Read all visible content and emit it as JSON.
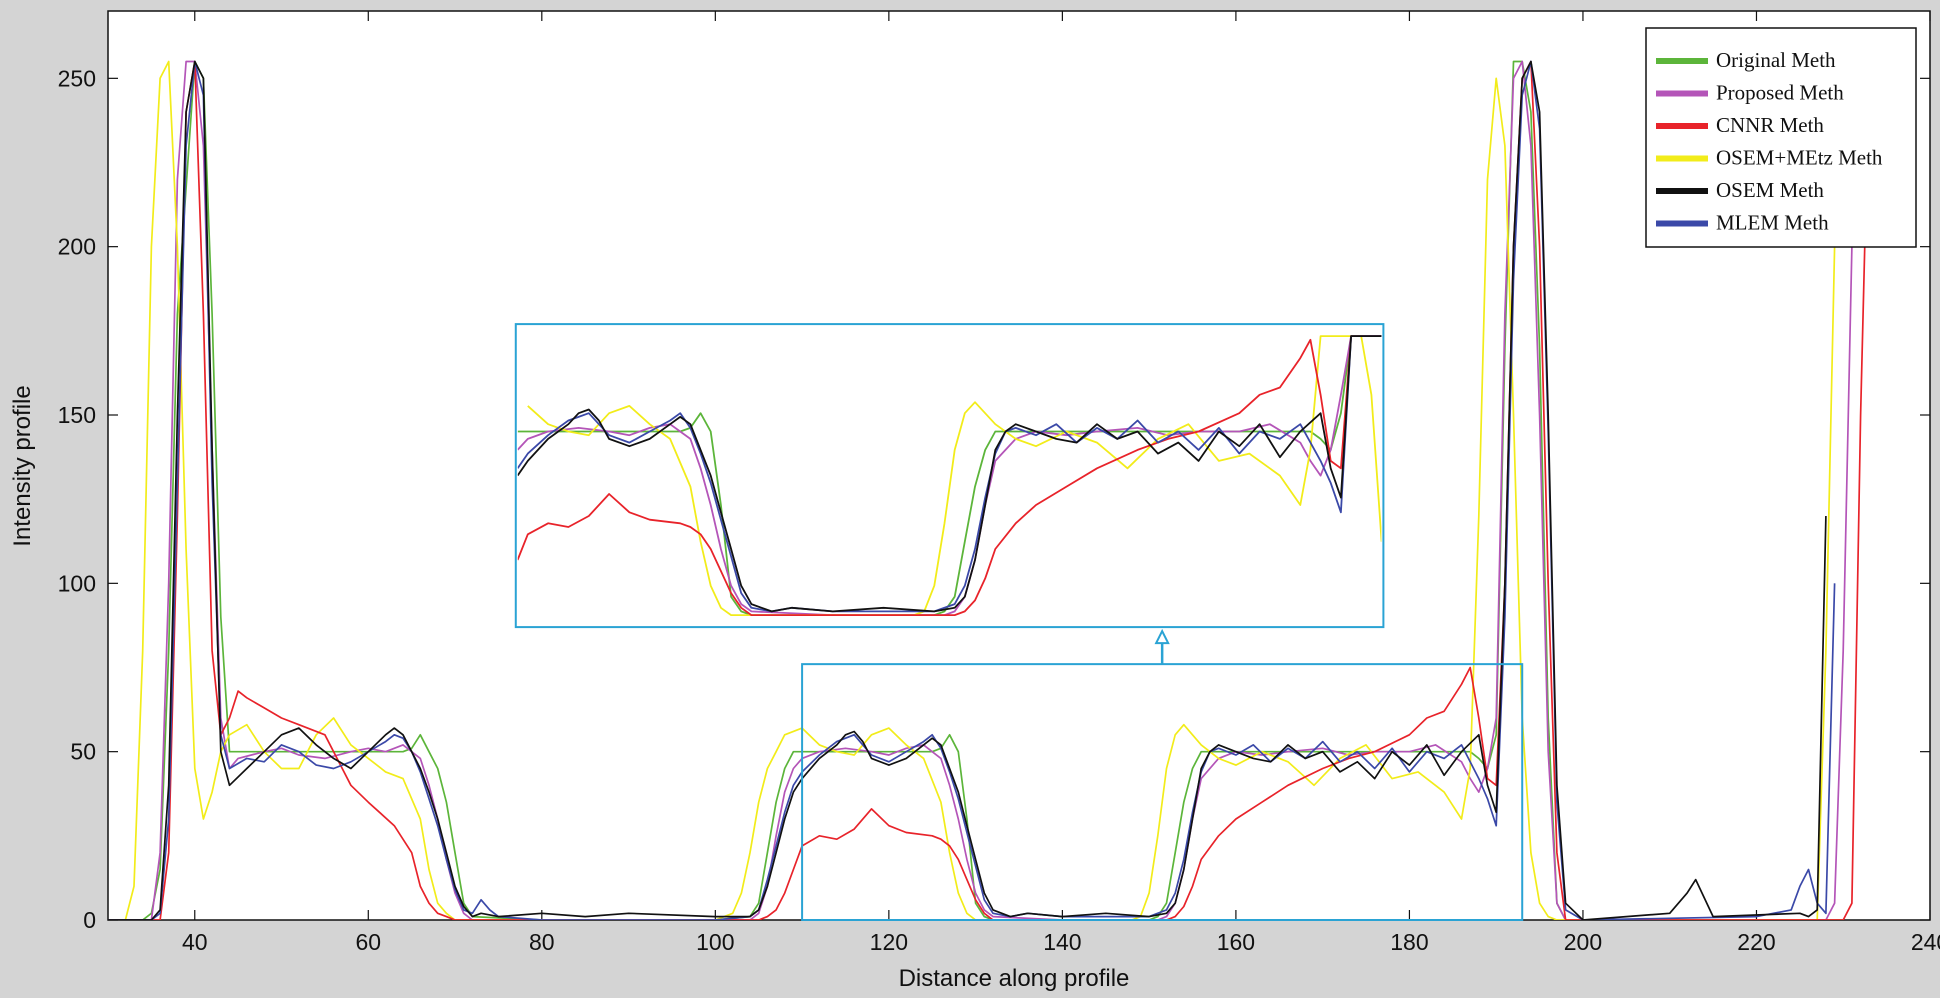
{
  "chart_data": {
    "type": "line",
    "title": "",
    "xlabel": "Distance along profile",
    "ylabel": "Intensity profile",
    "xlim": [
      30,
      240
    ],
    "ylim": [
      0,
      270
    ],
    "xticks": [
      40,
      60,
      80,
      100,
      120,
      140,
      160,
      180,
      200,
      220,
      240
    ],
    "yticks": [
      0,
      50,
      100,
      150,
      200,
      250
    ],
    "legend_position": "top-right",
    "colors": {
      "original": "#5cb53a",
      "proposed": "#b455b8",
      "cnnr": "#e8232a",
      "osem_metz": "#f2ec1a",
      "osem": "#111111",
      "mlem": "#3b49a8",
      "zoom_box": "#2aa3d4",
      "plot_bg": "#ffffff",
      "figure_bg": "#d4d4d4"
    },
    "series": [
      {
        "name": "Original Meth",
        "color": "#5cb53a",
        "x": [
          30,
          34,
          35,
          36,
          37,
          38,
          40,
          41,
          42,
          43,
          44,
          50,
          60,
          64,
          65,
          66,
          67,
          68,
          69,
          70,
          71,
          72,
          80,
          100,
          104,
          105,
          106,
          107,
          108,
          109,
          110,
          111,
          112,
          113,
          125,
          126,
          127,
          128,
          129,
          130,
          131,
          132,
          140,
          148,
          149,
          150,
          151,
          152,
          153,
          154,
          155,
          156,
          170,
          187,
          188,
          189,
          190,
          191,
          192,
          193,
          194,
          195,
          196,
          197,
          198,
          200,
          230
        ],
        "y": [
          0,
          0,
          2,
          15,
          80,
          180,
          255,
          250,
          180,
          90,
          50,
          50,
          50,
          50,
          51,
          55,
          50,
          45,
          35,
          20,
          5,
          1,
          0,
          0,
          1,
          5,
          20,
          35,
          45,
          50,
          50,
          50,
          50,
          50,
          50,
          51,
          55,
          50,
          30,
          5,
          1,
          0,
          0,
          0,
          0,
          0,
          1,
          5,
          20,
          35,
          45,
          50,
          50,
          50,
          48,
          45,
          55,
          170,
          255,
          255,
          240,
          170,
          60,
          5,
          0,
          0,
          0
        ]
      },
      {
        "name": "Proposed Meth",
        "color": "#b455b8",
        "x": [
          30,
          35,
          36,
          37,
          38,
          39,
          40,
          41,
          42,
          43,
          44,
          45,
          48,
          50,
          52,
          55,
          58,
          60,
          62,
          64,
          65,
          66,
          67,
          68,
          69,
          70,
          71,
          72,
          80,
          100,
          104,
          105,
          106,
          107,
          108,
          109,
          110,
          112,
          115,
          118,
          120,
          122,
          124,
          125,
          126,
          127,
          128,
          129,
          130,
          131,
          132,
          140,
          150,
          151,
          152,
          153,
          154,
          155,
          156,
          158,
          160,
          163,
          166,
          170,
          173,
          176,
          180,
          183,
          186,
          187,
          188,
          189,
          190,
          191,
          192,
          193,
          194,
          195,
          196,
          197,
          198,
          200,
          228,
          229,
          230,
          231,
          232,
          234
        ],
        "y": [
          0,
          0,
          20,
          100,
          220,
          255,
          255,
          230,
          140,
          60,
          45,
          48,
          50,
          51,
          49,
          48,
          50,
          51,
          50,
          52,
          50,
          48,
          40,
          30,
          18,
          8,
          2,
          0,
          0,
          0,
          0,
          2,
          10,
          25,
          38,
          45,
          48,
          50,
          51,
          50,
          49,
          51,
          52,
          50,
          48,
          40,
          30,
          18,
          8,
          3,
          1,
          0,
          0,
          0,
          1,
          5,
          15,
          30,
          42,
          48,
          50,
          49,
          50,
          51,
          49,
          50,
          50,
          52,
          47,
          42,
          38,
          45,
          60,
          180,
          250,
          255,
          230,
          150,
          50,
          5,
          0,
          0,
          0,
          5,
          80,
          200,
          255,
          255
        ]
      },
      {
        "name": "CNNR Meth",
        "color": "#e8232a",
        "x": [
          30,
          36,
          37,
          38,
          39,
          40,
          41,
          42,
          43,
          44,
          45,
          46,
          48,
          50,
          52,
          55,
          58,
          60,
          63,
          65,
          66,
          67,
          68,
          69,
          70,
          71,
          72,
          80,
          100,
          105,
          106,
          107,
          108,
          109,
          110,
          112,
          114,
          116,
          118,
          120,
          122,
          125,
          126,
          127,
          128,
          129,
          130,
          131,
          132,
          140,
          152,
          153,
          154,
          155,
          156,
          158,
          160,
          163,
          166,
          170,
          173,
          176,
          180,
          182,
          184,
          186,
          187,
          188,
          189,
          190,
          191,
          192,
          193,
          194,
          195,
          196,
          197,
          198,
          200,
          230,
          231,
          232,
          233,
          235
        ],
        "y": [
          0,
          0,
          20,
          120,
          240,
          255,
          180,
          80,
          55,
          60,
          68,
          66,
          63,
          60,
          58,
          55,
          40,
          35,
          28,
          20,
          10,
          5,
          2,
          1,
          0,
          0,
          0,
          0,
          0,
          0,
          1,
          3,
          8,
          15,
          22,
          25,
          24,
          27,
          33,
          28,
          26,
          25,
          24,
          22,
          18,
          12,
          6,
          2,
          0,
          0,
          0,
          1,
          4,
          10,
          18,
          25,
          30,
          35,
          40,
          45,
          48,
          50,
          55,
          60,
          62,
          70,
          75,
          60,
          42,
          40,
          100,
          200,
          250,
          255,
          200,
          100,
          20,
          0,
          0,
          0,
          5,
          150,
          255,
          255
        ]
      },
      {
        "name": "OSEM+MEtz Meth",
        "color": "#f2ec1a",
        "x": [
          30,
          32,
          33,
          34,
          35,
          36,
          37,
          38,
          39,
          40,
          41,
          42,
          43,
          44,
          46,
          48,
          50,
          52,
          54,
          56,
          58,
          60,
          62,
          64,
          66,
          67,
          68,
          69,
          70,
          80,
          100,
          102,
          103,
          104,
          105,
          106,
          107,
          108,
          110,
          112,
          114,
          116,
          118,
          120,
          122,
          124,
          126,
          127,
          128,
          129,
          130,
          140,
          148,
          149,
          150,
          151,
          152,
          153,
          154,
          156,
          158,
          160,
          163,
          166,
          169,
          172,
          175,
          178,
          181,
          184,
          186,
          187,
          188,
          189,
          190,
          191,
          192,
          193,
          194,
          195,
          196,
          197,
          198,
          227,
          228,
          229
        ],
        "y": [
          0,
          0,
          10,
          80,
          200,
          250,
          255,
          200,
          110,
          45,
          30,
          38,
          50,
          55,
          58,
          50,
          45,
          45,
          55,
          60,
          52,
          48,
          44,
          42,
          30,
          15,
          5,
          2,
          0,
          0,
          0,
          2,
          8,
          20,
          35,
          45,
          50,
          55,
          57,
          52,
          50,
          49,
          55,
          57,
          52,
          48,
          35,
          20,
          8,
          2,
          0,
          0,
          0,
          1,
          8,
          25,
          45,
          55,
          58,
          52,
          48,
          46,
          50,
          47,
          40,
          48,
          52,
          42,
          44,
          38,
          30,
          45,
          120,
          220,
          250,
          230,
          150,
          60,
          20,
          5,
          1,
          0,
          0,
          0,
          80,
          200
        ]
      },
      {
        "name": "OSEM Meth",
        "color": "#111111",
        "x": [
          30,
          35,
          36,
          37,
          38,
          39,
          40,
          41,
          42,
          43,
          44,
          46,
          48,
          50,
          52,
          54,
          56,
          58,
          60,
          62,
          63,
          64,
          65,
          66,
          67,
          68,
          69,
          70,
          71,
          72,
          73,
          75,
          80,
          85,
          90,
          100,
          104,
          105,
          106,
          107,
          108,
          109,
          110,
          112,
          114,
          115,
          116,
          117,
          118,
          120,
          122,
          124,
          125,
          126,
          127,
          128,
          129,
          130,
          131,
          132,
          134,
          136,
          140,
          145,
          150,
          152,
          153,
          154,
          155,
          156,
          157,
          158,
          160,
          162,
          164,
          166,
          168,
          170,
          172,
          174,
          176,
          178,
          180,
          182,
          184,
          186,
          188,
          189,
          190,
          191,
          192,
          193,
          194,
          195,
          196,
          197,
          198,
          200,
          205,
          210,
          212,
          213,
          215,
          225,
          226,
          227,
          228
        ],
        "y": [
          0,
          0,
          3,
          40,
          150,
          240,
          255,
          250,
          140,
          50,
          40,
          45,
          50,
          55,
          57,
          52,
          48,
          45,
          50,
          55,
          57,
          55,
          50,
          45,
          38,
          30,
          20,
          10,
          4,
          1,
          2,
          1,
          2,
          1,
          2,
          1,
          1,
          3,
          10,
          20,
          30,
          38,
          42,
          48,
          52,
          55,
          56,
          53,
          48,
          46,
          48,
          52,
          54,
          52,
          45,
          38,
          28,
          18,
          8,
          3,
          1,
          2,
          1,
          2,
          1,
          2,
          5,
          15,
          30,
          45,
          50,
          52,
          50,
          48,
          47,
          52,
          48,
          50,
          44,
          47,
          42,
          50,
          46,
          52,
          43,
          50,
          55,
          40,
          32,
          100,
          200,
          250,
          255,
          240,
          150,
          40,
          5,
          0,
          1,
          2,
          8,
          12,
          1,
          2,
          1,
          3,
          120
        ]
      },
      {
        "name": "MLEM Meth",
        "color": "#3b49a8",
        "x": [
          30,
          35,
          36,
          37,
          38,
          39,
          40,
          41,
          42,
          43,
          44,
          46,
          48,
          50,
          52,
          54,
          56,
          58,
          60,
          62,
          63,
          64,
          65,
          66,
          67,
          68,
          69,
          70,
          71,
          72,
          73,
          74,
          75,
          80,
          100,
          104,
          105,
          106,
          107,
          108,
          109,
          110,
          112,
          114,
          115,
          116,
          117,
          118,
          120,
          122,
          124,
          125,
          126,
          127,
          128,
          129,
          130,
          131,
          132,
          134,
          136,
          140,
          150,
          152,
          153,
          154,
          155,
          156,
          157,
          158,
          160,
          162,
          164,
          166,
          168,
          170,
          172,
          174,
          176,
          178,
          180,
          182,
          184,
          186,
          188,
          189,
          190,
          191,
          192,
          193,
          194,
          195,
          196,
          197,
          198,
          200,
          220,
          224,
          225,
          226,
          227,
          228,
          229
        ],
        "y": [
          0,
          0,
          2,
          30,
          130,
          230,
          255,
          245,
          130,
          55,
          45,
          48,
          47,
          52,
          50,
          46,
          45,
          47,
          50,
          53,
          55,
          54,
          50,
          44,
          36,
          28,
          18,
          9,
          3,
          2,
          6,
          3,
          1,
          0,
          0,
          1,
          3,
          12,
          22,
          32,
          40,
          44,
          49,
          53,
          54,
          55,
          52,
          49,
          47,
          50,
          53,
          55,
          51,
          44,
          36,
          26,
          16,
          6,
          2,
          1,
          2,
          1,
          1,
          3,
          8,
          18,
          32,
          44,
          50,
          51,
          49,
          52,
          47,
          51,
          48,
          53,
          47,
          50,
          45,
          51,
          44,
          50,
          48,
          52,
          42,
          36,
          28,
          90,
          190,
          245,
          255,
          235,
          145,
          35,
          3,
          0,
          1,
          3,
          10,
          15,
          5,
          2,
          100
        ]
      }
    ],
    "zoom_inset": {
      "source_x": [
        110,
        193
      ],
      "source_y": [
        0,
        76
      ],
      "target_x": [
        77,
        177
      ],
      "target_y": [
        87,
        177
      ]
    }
  }
}
